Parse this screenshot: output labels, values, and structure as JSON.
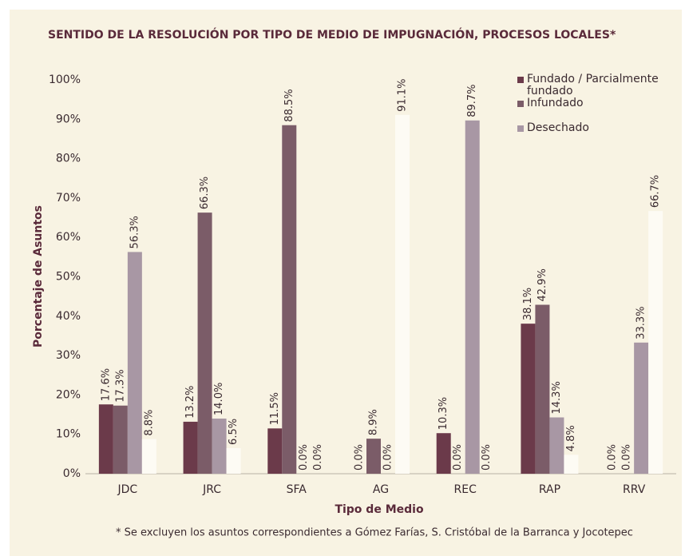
{
  "chart_data": {
    "type": "bar",
    "title": "SENTIDO DE LA RESOLUCIÓN POR TIPO DE MEDIO DE IMPUGNACIÓN, PROCESOS LOCALES*",
    "x_label": "Tipo de Medio",
    "y_label": "Porcentaje de Asuntos",
    "footnote": "* Se excluyen los asuntos correspondientes a Gómez Farías, S. Cristóbal de la Barranca y Jocotepec",
    "categories": [
      "JDC",
      "JRC",
      "SFA",
      "AG",
      "REC",
      "RAP",
      "RRV"
    ],
    "series": [
      {
        "name": "Fundado / Parcialmente fundado",
        "color": "#6b3a4a",
        "values": [
          17.6,
          13.2,
          11.5,
          0,
          10.3,
          38.1,
          0
        ],
        "value_labels": [
          "17.6%",
          "13.2%",
          "11.5%",
          "0.0%",
          "10.3%",
          "38.1%",
          "0.0%"
        ]
      },
      {
        "name": "Infundado",
        "color": "#7b5c68",
        "values": [
          17.3,
          66.3,
          88.5,
          8.9,
          0,
          42.9,
          0
        ],
        "value_labels": [
          "17.3%",
          "66.3%",
          "88.5%",
          "8.9%",
          "0.0%",
          "42.9%",
          "0.0%"
        ]
      },
      {
        "name": "Desechado",
        "color": "#a897a4",
        "values": [
          56.3,
          14,
          0,
          0,
          89.7,
          14.3,
          33.3
        ],
        "value_labels": [
          "56.3%",
          "14.0%",
          "0.0%",
          "0.0%",
          "89.7%",
          "14.3%",
          "33.3%"
        ]
      },
      {
        "color": "#fdfbf4",
        "values": [
          8.8,
          6.5,
          0,
          91.1,
          0,
          4.8,
          66.7
        ],
        "value_labels": [
          "8.8%",
          "6.5%",
          "0.0%",
          "91.1%",
          "0.0%",
          "4.8%",
          "66.7%"
        ]
      }
    ],
    "ylim": [
      0,
      100
    ],
    "yticks": [
      {
        "value": 0,
        "label": "0%"
      },
      {
        "value": 10,
        "label": "10%"
      },
      {
        "value": 20,
        "label": "20%"
      },
      {
        "value": 30,
        "label": "30%"
      },
      {
        "value": 40,
        "label": "40%"
      },
      {
        "value": 50,
        "label": "50%"
      },
      {
        "value": 60,
        "label": "60%"
      },
      {
        "value": 70,
        "label": "70%"
      },
      {
        "value": 80,
        "label": "80%"
      },
      {
        "value": 90,
        "label": "90%"
      },
      {
        "value": 100,
        "label": "100%"
      }
    ],
    "grid": false,
    "legend": "top-right"
  }
}
